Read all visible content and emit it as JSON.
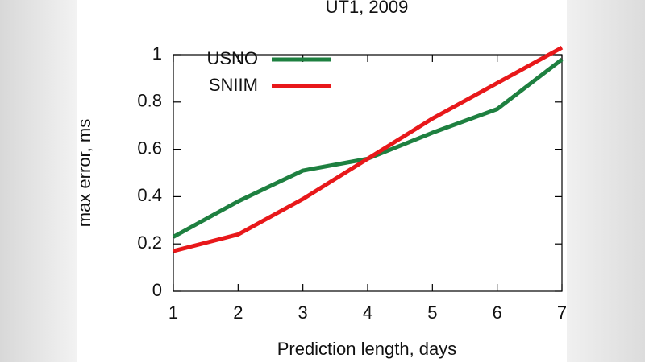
{
  "chart_data": {
    "type": "line",
    "title": "UT1, 2009",
    "x_label": "Prediction length, days",
    "y_label": "max error, ms",
    "x": [
      1,
      2,
      3,
      4,
      5,
      6,
      7
    ],
    "series": [
      {
        "name": "USNO",
        "color": "#1e8040",
        "values": [
          0.23,
          0.38,
          0.51,
          0.56,
          0.67,
          0.77,
          0.98
        ]
      },
      {
        "name": "SNIIM",
        "color": "#e8181a",
        "values": [
          0.17,
          0.24,
          0.39,
          0.56,
          0.73,
          0.88,
          1.03
        ]
      }
    ],
    "xlim": [
      1,
      7
    ],
    "xticks": [
      1,
      2,
      3,
      4,
      5,
      6,
      7
    ],
    "ylim": [
      0,
      1
    ],
    "yticks": [
      0,
      0.2,
      0.4,
      0.6,
      0.8,
      1
    ],
    "legend": "top-left"
  }
}
